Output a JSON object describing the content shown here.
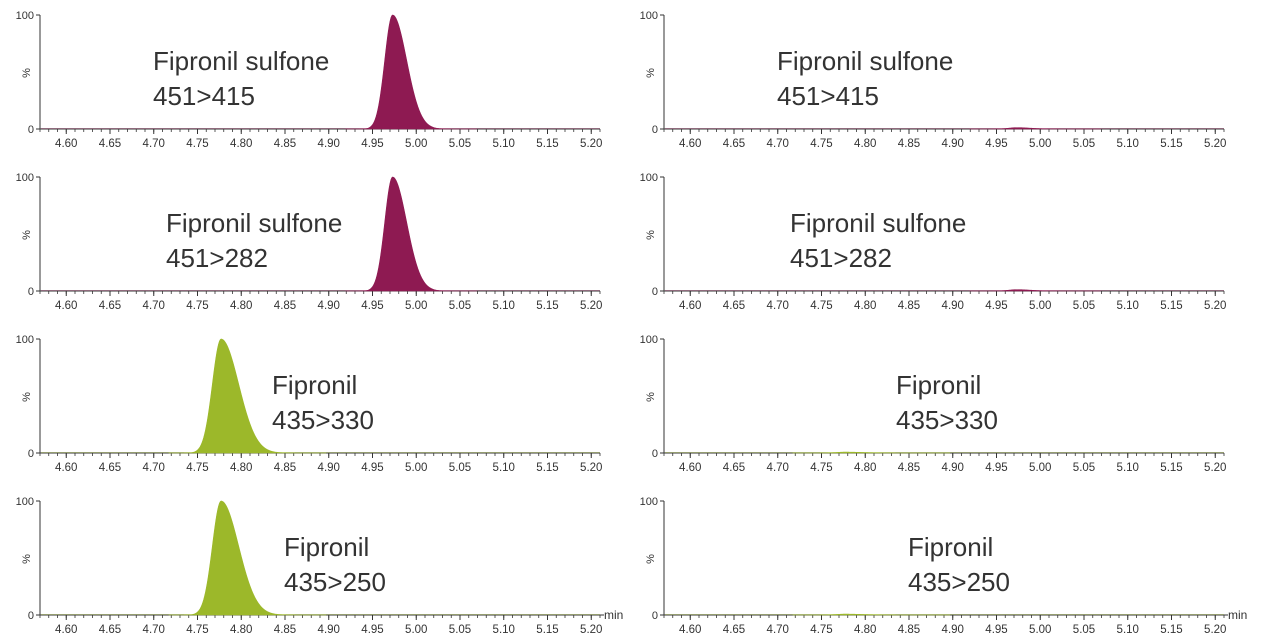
{
  "chart_data": [
    {
      "type": "area",
      "title": "Fipronil sulfone",
      "subtitle": "451>415",
      "color": "#8e1a52",
      "xlim": [
        4.57,
        5.21
      ],
      "ylim": [
        0,
        100
      ],
      "yticks": [
        "0",
        "%",
        "100"
      ],
      "xticks": [
        "4.60",
        "4.65",
        "4.70",
        "4.75",
        "4.80",
        "4.85",
        "4.90",
        "4.95",
        "5.00",
        "5.05",
        "5.10",
        "5.15",
        "5.20"
      ],
      "xunit": "",
      "peak": {
        "rt": 4.973,
        "height": 100,
        "sigma": 0.009,
        "tail": 0.016
      }
    },
    {
      "type": "area",
      "title": "Fipronil sulfone",
      "subtitle": "451>415",
      "color": "#8e1a52",
      "xlim": [
        4.57,
        5.21
      ],
      "ylim": [
        0,
        100
      ],
      "yticks": [
        "0",
        "%",
        "100"
      ],
      "xticks": [
        "4.60",
        "4.65",
        "4.70",
        "4.75",
        "4.80",
        "4.85",
        "4.90",
        "4.95",
        "5.00",
        "5.05",
        "5.10",
        "5.15",
        "5.20"
      ],
      "xunit": "",
      "peak": {
        "rt": 4.973,
        "height": 1.2,
        "sigma": 0.009,
        "tail": 0.016
      }
    },
    {
      "type": "area",
      "title": "Fipronil sulfone",
      "subtitle": "451>282",
      "color": "#8e1a52",
      "xlim": [
        4.57,
        5.21
      ],
      "ylim": [
        0,
        100
      ],
      "yticks": [
        "0",
        "%",
        "100"
      ],
      "xticks": [
        "4.60",
        "4.65",
        "4.70",
        "4.75",
        "4.80",
        "4.85",
        "4.90",
        "4.95",
        "5.00",
        "5.05",
        "5.10",
        "5.15",
        "5.20"
      ],
      "xunit": "",
      "peak": {
        "rt": 4.973,
        "height": 100,
        "sigma": 0.009,
        "tail": 0.016
      }
    },
    {
      "type": "area",
      "title": "Fipronil sulfone",
      "subtitle": "451>282",
      "color": "#8e1a52",
      "xlim": [
        4.57,
        5.21
      ],
      "ylim": [
        0,
        100
      ],
      "yticks": [
        "0",
        "%",
        "100"
      ],
      "xticks": [
        "4.60",
        "4.65",
        "4.70",
        "4.75",
        "4.80",
        "4.85",
        "4.90",
        "4.95",
        "5.00",
        "5.05",
        "5.10",
        "5.15",
        "5.20"
      ],
      "xunit": "",
      "peak": {
        "rt": 4.973,
        "height": 1.2,
        "sigma": 0.009,
        "tail": 0.016
      }
    },
    {
      "type": "area",
      "title": "Fipronil",
      "subtitle": "435>330",
      "color": "#9cb82a",
      "xlim": [
        4.57,
        5.21
      ],
      "ylim": [
        0,
        100
      ],
      "yticks": [
        "0",
        "%",
        "100"
      ],
      "xticks": [
        "4.60",
        "4.65",
        "4.70",
        "4.75",
        "4.80",
        "4.85",
        "4.90",
        "4.95",
        "5.00",
        "5.05",
        "5.10",
        "5.15",
        "5.20"
      ],
      "xunit": "",
      "peak": {
        "rt": 4.777,
        "height": 100,
        "sigma": 0.01,
        "tail": 0.02
      }
    },
    {
      "type": "area",
      "title": "Fipronil",
      "subtitle": "435>330",
      "color": "#9cb82a",
      "xlim": [
        4.57,
        5.21
      ],
      "ylim": [
        0,
        100
      ],
      "yticks": [
        "0",
        "%",
        "100"
      ],
      "xticks": [
        "4.60",
        "4.65",
        "4.70",
        "4.75",
        "4.80",
        "4.85",
        "4.90",
        "4.95",
        "5.00",
        "5.05",
        "5.10",
        "5.15",
        "5.20"
      ],
      "xunit": "",
      "peak": {
        "rt": 4.777,
        "height": 0.8,
        "sigma": 0.01,
        "tail": 0.02
      }
    },
    {
      "type": "area",
      "title": "Fipronil",
      "subtitle": "435>250",
      "color": "#9cb82a",
      "xlim": [
        4.57,
        5.21
      ],
      "ylim": [
        0,
        100
      ],
      "yticks": [
        "0",
        "%",
        "100"
      ],
      "xticks": [
        "4.60",
        "4.65",
        "4.70",
        "4.75",
        "4.80",
        "4.85",
        "4.90",
        "4.95",
        "5.00",
        "5.05",
        "5.10",
        "5.15",
        "5.20"
      ],
      "xunit": "min",
      "peak": {
        "rt": 4.777,
        "height": 100,
        "sigma": 0.01,
        "tail": 0.02
      }
    },
    {
      "type": "area",
      "title": "Fipronil",
      "subtitle": "435>250",
      "color": "#9cb82a",
      "xlim": [
        4.57,
        5.21
      ],
      "ylim": [
        0,
        100
      ],
      "yticks": [
        "0",
        "%",
        "100"
      ],
      "xticks": [
        "4.60",
        "4.65",
        "4.70",
        "4.75",
        "4.80",
        "4.85",
        "4.90",
        "4.95",
        "5.00",
        "5.05",
        "5.10",
        "5.15",
        "5.20"
      ],
      "xunit": "min",
      "peak": {
        "rt": 4.777,
        "height": 0.8,
        "sigma": 0.01,
        "tail": 0.02
      }
    }
  ]
}
